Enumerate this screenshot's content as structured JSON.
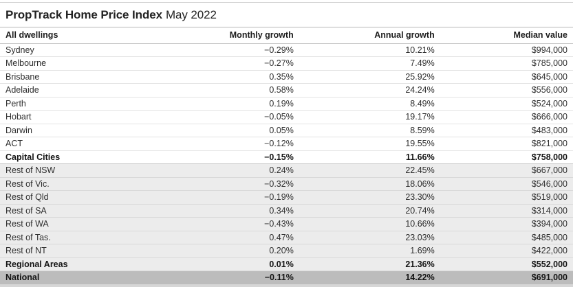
{
  "header": {
    "title": "PropTrack Home Price Index",
    "period": "May 2022"
  },
  "colors": {
    "band_white": "#ffffff",
    "band_light": "#ececec",
    "band_dark": "#bcbcbc",
    "separator_white_band": "#e3e3e3",
    "separator_light_band": "#d9d9d9",
    "rule_top": "#d0d0d0",
    "rule_under_title": "#b5b5b5",
    "rule_under_header": "#c6c6c6",
    "text_regular": "#2e2e2e",
    "text_bold": "#141414"
  },
  "table": {
    "columns": [
      "All dwellings",
      "Monthly growth",
      "Annual growth",
      "Median value"
    ],
    "rows": [
      {
        "label": "Sydney",
        "monthly": "−0.29%",
        "annual": "10.21%",
        "median": "$994,000",
        "band": "white",
        "emphasis": false
      },
      {
        "label": "Melbourne",
        "monthly": "−0.27%",
        "annual": "7.49%",
        "median": "$785,000",
        "band": "white",
        "emphasis": false
      },
      {
        "label": "Brisbane",
        "monthly": "0.35%",
        "annual": "25.92%",
        "median": "$645,000",
        "band": "white",
        "emphasis": false
      },
      {
        "label": "Adelaide",
        "monthly": "0.58%",
        "annual": "24.24%",
        "median": "$556,000",
        "band": "white",
        "emphasis": false
      },
      {
        "label": "Perth",
        "monthly": "0.19%",
        "annual": "8.49%",
        "median": "$524,000",
        "band": "white",
        "emphasis": false
      },
      {
        "label": "Hobart",
        "monthly": "−0.05%",
        "annual": "19.17%",
        "median": "$666,000",
        "band": "white",
        "emphasis": false
      },
      {
        "label": "Darwin",
        "monthly": "0.05%",
        "annual": "8.59%",
        "median": "$483,000",
        "band": "white",
        "emphasis": false
      },
      {
        "label": "ACT",
        "monthly": "−0.12%",
        "annual": "19.55%",
        "median": "$821,000",
        "band": "white",
        "emphasis": false
      },
      {
        "label": "Capital Cities",
        "monthly": "−0.15%",
        "annual": "11.66%",
        "median": "$758,000",
        "band": "white",
        "emphasis": true
      },
      {
        "label": "Rest of NSW",
        "monthly": "0.24%",
        "annual": "22.45%",
        "median": "$667,000",
        "band": "light",
        "emphasis": false
      },
      {
        "label": "Rest of Vic.",
        "monthly": "−0.32%",
        "annual": "18.06%",
        "median": "$546,000",
        "band": "light",
        "emphasis": false
      },
      {
        "label": "Rest of Qld",
        "monthly": "−0.19%",
        "annual": "23.30%",
        "median": "$519,000",
        "band": "light",
        "emphasis": false
      },
      {
        "label": "Rest of SA",
        "monthly": "0.34%",
        "annual": "20.74%",
        "median": "$314,000",
        "band": "light",
        "emphasis": false
      },
      {
        "label": "Rest of WA",
        "monthly": "−0.43%",
        "annual": "10.66%",
        "median": "$394,000",
        "band": "light",
        "emphasis": false
      },
      {
        "label": "Rest of Tas.",
        "monthly": "0.47%",
        "annual": "23.03%",
        "median": "$485,000",
        "band": "light",
        "emphasis": false
      },
      {
        "label": "Rest of NT",
        "monthly": "0.20%",
        "annual": "1.69%",
        "median": "$422,000",
        "band": "light",
        "emphasis": false
      },
      {
        "label": "Regional Areas",
        "monthly": "0.01%",
        "annual": "21.36%",
        "median": "$552,000",
        "band": "light",
        "emphasis": true
      },
      {
        "label": "National",
        "monthly": "−0.11%",
        "annual": "14.22%",
        "median": "$691,000",
        "band": "dark",
        "emphasis": true
      }
    ]
  },
  "chart_data": {
    "type": "table",
    "title": "PropTrack Home Price Index May 2022",
    "columns": [
      "All dwellings",
      "Monthly growth (%)",
      "Annual growth (%)",
      "Median value ($)"
    ],
    "rows": [
      [
        "Sydney",
        -0.29,
        10.21,
        994000
      ],
      [
        "Melbourne",
        -0.27,
        7.49,
        785000
      ],
      [
        "Brisbane",
        0.35,
        25.92,
        645000
      ],
      [
        "Adelaide",
        0.58,
        24.24,
        556000
      ],
      [
        "Perth",
        0.19,
        8.49,
        524000
      ],
      [
        "Hobart",
        -0.05,
        19.17,
        666000
      ],
      [
        "Darwin",
        0.05,
        8.59,
        483000
      ],
      [
        "ACT",
        -0.12,
        19.55,
        821000
      ],
      [
        "Capital Cities",
        -0.15,
        11.66,
        758000
      ],
      [
        "Rest of NSW",
        0.24,
        22.45,
        667000
      ],
      [
        "Rest of Vic.",
        -0.32,
        18.06,
        546000
      ],
      [
        "Rest of Qld",
        -0.19,
        23.3,
        519000
      ],
      [
        "Rest of SA",
        0.34,
        20.74,
        314000
      ],
      [
        "Rest of WA",
        -0.43,
        10.66,
        394000
      ],
      [
        "Rest of Tas.",
        0.47,
        23.03,
        485000
      ],
      [
        "Rest of NT",
        0.2,
        1.69,
        422000
      ],
      [
        "Regional Areas",
        0.01,
        21.36,
        552000
      ],
      [
        "National",
        -0.11,
        14.22,
        691000
      ]
    ],
    "summary_rows": [
      "Capital Cities",
      "Regional Areas",
      "National"
    ],
    "legend_position": "none",
    "grid": "horizontal-row-separators"
  }
}
